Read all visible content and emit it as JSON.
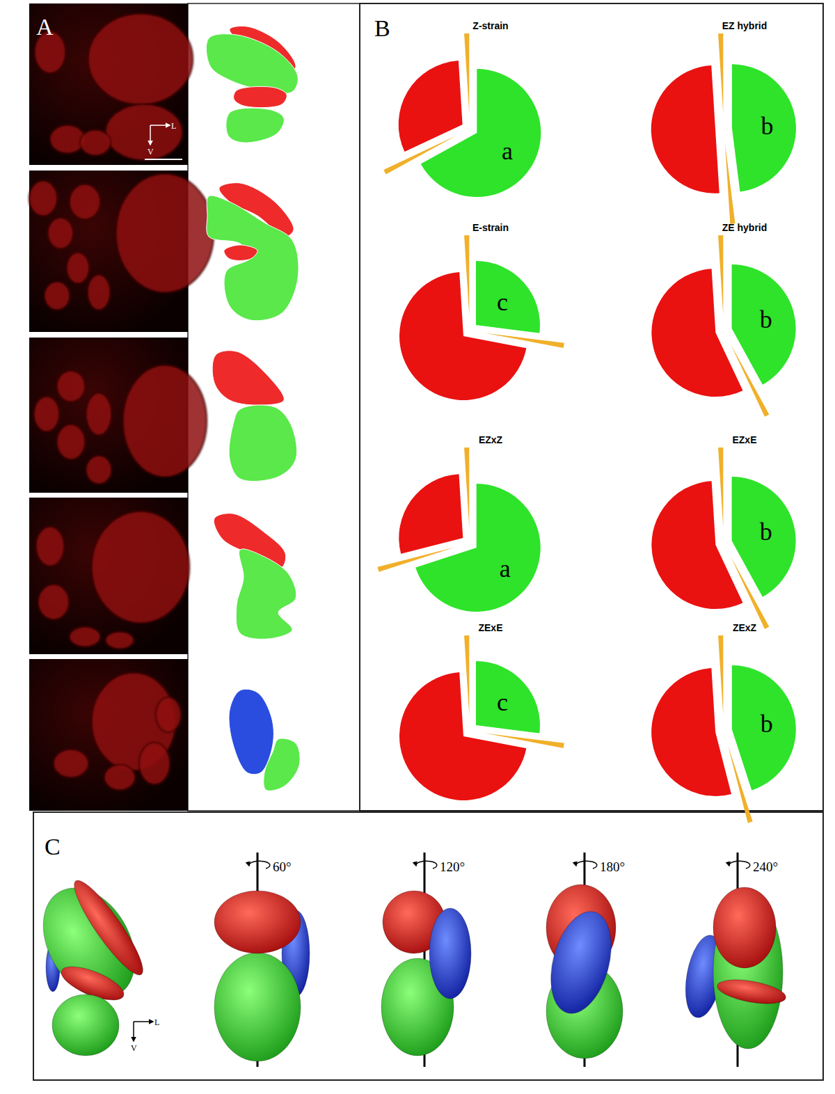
{
  "chart_data": [
    {
      "type": "pie",
      "title": "Z-strain",
      "values": [
        67,
        1,
        31,
        1
      ],
      "colors": [
        "#2ee32a",
        "#f0b02a",
        "#ea1111",
        "#f0b02a"
      ],
      "annotation": "a"
    },
    {
      "type": "pie",
      "title": "EZ hybrid",
      "values": [
        48,
        1,
        50,
        1
      ],
      "colors": [
        "#2ee32a",
        "#f0b02a",
        "#ea1111",
        "#f0b02a"
      ],
      "annotation": "b"
    },
    {
      "type": "pie",
      "title": "E-strain",
      "values": [
        27,
        1,
        71,
        1
      ],
      "colors": [
        "#2ee32a",
        "#f0b02a",
        "#ea1111",
        "#f0b02a"
      ],
      "annotation": "c"
    },
    {
      "type": "pie",
      "title": "ZE hybrid",
      "values": [
        42,
        1,
        56,
        1
      ],
      "colors": [
        "#2ee32a",
        "#f0b02a",
        "#ea1111",
        "#f0b02a"
      ],
      "annotation": "b"
    },
    {
      "type": "pie",
      "title": "EZxZ",
      "values": [
        70,
        1,
        28,
        1
      ],
      "colors": [
        "#2ee32a",
        "#f0b02a",
        "#ea1111",
        "#f0b02a"
      ],
      "annotation": "a"
    },
    {
      "type": "pie",
      "title": "EZxE",
      "values": [
        42,
        1,
        56,
        1
      ],
      "colors": [
        "#2ee32a",
        "#f0b02a",
        "#ea1111",
        "#f0b02a"
      ],
      "annotation": "b"
    },
    {
      "type": "pie",
      "title": "ZExE",
      "values": [
        27,
        1,
        71,
        1
      ],
      "colors": [
        "#2ee32a",
        "#f0b02a",
        "#ea1111",
        "#f0b02a"
      ],
      "annotation": "c"
    },
    {
      "type": "pie",
      "title": "ZExZ",
      "values": [
        45,
        1,
        53,
        1
      ],
      "colors": [
        "#2ee32a",
        "#f0b02a",
        "#ea1111",
        "#f0b02a"
      ],
      "annotation": "b"
    }
  ],
  "figure": {
    "panel_labels": [
      "A",
      "B",
      "C"
    ],
    "orientation_labels": [
      "L",
      "V"
    ],
    "rotations": [
      "60°",
      "120°",
      "180°",
      "240°"
    ]
  }
}
